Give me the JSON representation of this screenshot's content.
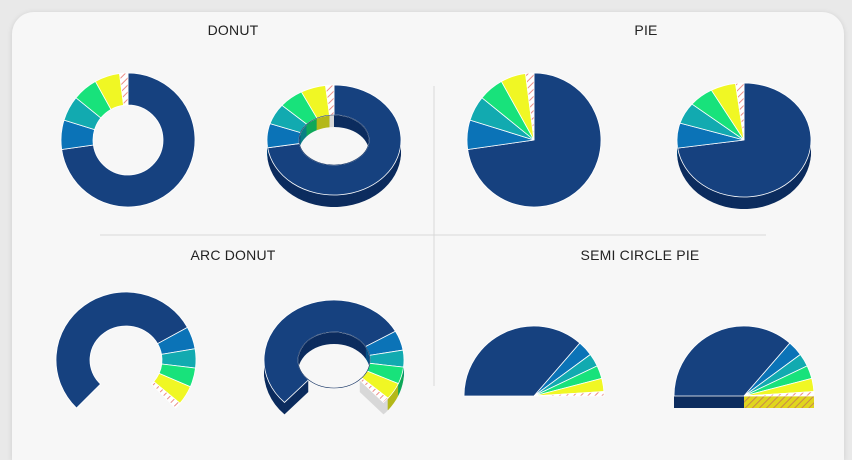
{
  "titles": {
    "donut": "DONUT",
    "pie": "PIE",
    "arc_donut": "ARC DONUT",
    "semi_circle_pie": "SEMI CIRCLE PIE"
  },
  "palette": {
    "slices": [
      "#16417f",
      "#0b73b7",
      "#12aab0",
      "#18e27b",
      "#f0f724",
      "#ffffff"
    ],
    "depth": [
      "#0c2c5e",
      "#065086",
      "#0b7f84",
      "#0fa85a",
      "#b4b81a",
      "#d8d8d8"
    ],
    "hatch": "#ea8c86",
    "divider": "#d8d8d8",
    "card": "#f7f7f7"
  },
  "chart_data": [
    {
      "type": "donut",
      "variant": "2d",
      "values": [
        72,
        7,
        6,
        6,
        6,
        2
      ],
      "hatched_last": true
    },
    {
      "type": "donut",
      "variant": "3d",
      "values": [
        72,
        7,
        6,
        6,
        6,
        2
      ],
      "hatched_last": true
    },
    {
      "type": "pie",
      "variant": "2d",
      "values": [
        72,
        7,
        6,
        6,
        6,
        2
      ],
      "hatched_last": true
    },
    {
      "type": "pie",
      "variant": "3d",
      "values": [
        72,
        7,
        6,
        6,
        6,
        2
      ],
      "hatched_last": true
    },
    {
      "type": "arc-donut",
      "variant": "2d",
      "values": [
        72,
        7,
        6,
        6,
        6,
        2
      ],
      "hatched_last": true
    },
    {
      "type": "arc-donut",
      "variant": "3d",
      "values": [
        72,
        7,
        6,
        6,
        6,
        2
      ],
      "hatched_last": true
    },
    {
      "type": "semi-circle-pie",
      "variant": "2d",
      "values": [
        72,
        7,
        6,
        6,
        6,
        2
      ],
      "hatched_last": true
    },
    {
      "type": "semi-circle-pie",
      "variant": "3d",
      "values": [
        72,
        7,
        6,
        6,
        6,
        2
      ],
      "hatched_last": true
    }
  ]
}
